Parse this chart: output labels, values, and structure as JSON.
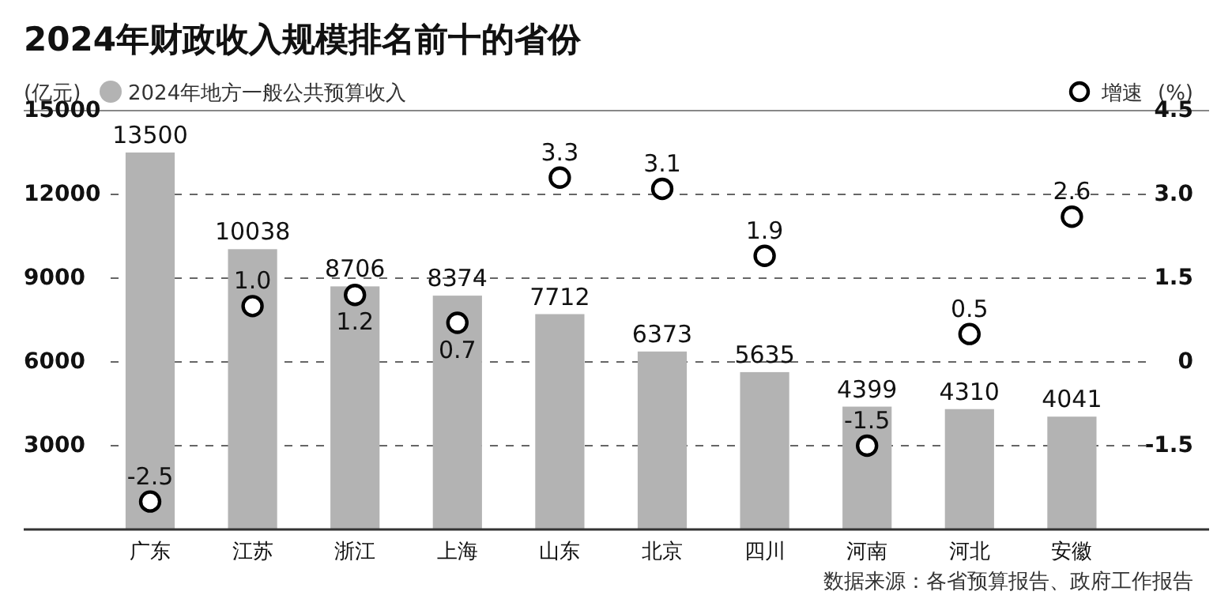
{
  "chart_data": {
    "type": "bar",
    "title": "2024年财政收入规模排名前十的省份",
    "ylabel": "(亿元)",
    "y2label": "(%)",
    "categories": [
      "广东",
      "江苏",
      "浙江",
      "上海",
      "山东",
      "北京",
      "四川",
      "河南",
      "河北",
      "安徽"
    ],
    "series": [
      {
        "name": "2024年地方一般公共预算收入",
        "color": "#b3b3b3",
        "values": [
          13500,
          10038,
          8706,
          8374,
          7712,
          6373,
          5635,
          4399,
          4310,
          4041
        ]
      },
      {
        "name": "增速",
        "type": "scatter",
        "axis": "y2",
        "color": "#000000",
        "marker": "circle",
        "values": [
          -2.5,
          1.0,
          1.2,
          0.7,
          3.3,
          3.1,
          1.9,
          -1.5,
          0.5,
          2.6
        ],
        "value_labels": [
          "-2.5",
          "1.0",
          "1.2",
          "0.7",
          "3.3",
          "3.1",
          "1.9",
          "-1.5",
          "0.5",
          "2.6"
        ]
      }
    ],
    "ylim": [
      0,
      15000
    ],
    "yticks": [
      3000,
      6000,
      9000,
      12000,
      15000
    ],
    "y2lim": [
      -3,
      4.5
    ],
    "y2ticks": [
      -1.5,
      0,
      1.5,
      {
        "value": 3,
        "label": "3.0"
      },
      4.5
    ],
    "grid": "y",
    "legend": "top",
    "data_labels": true,
    "annotations": [
      "数据来源：各省预算报告、政府工作报告"
    ]
  }
}
